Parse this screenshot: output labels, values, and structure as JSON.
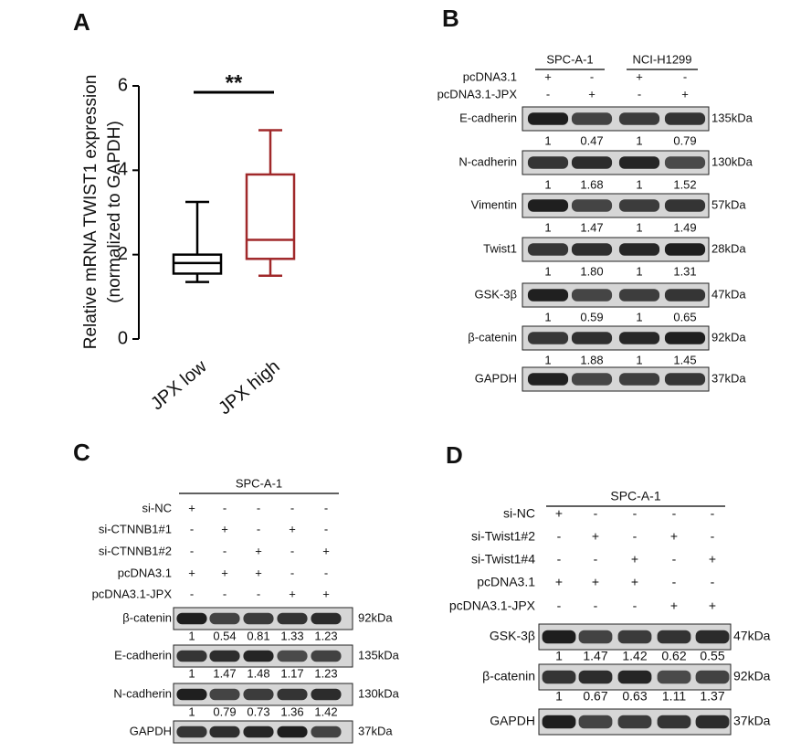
{
  "chart_data": {
    "type": "box",
    "panel": "A",
    "y_label_lines": [
      "Relative mRNA TWIST1 expression",
      "(normalized to GAPDH)"
    ],
    "annotation": "**",
    "categories": [
      "JPX low",
      "JPX high"
    ],
    "colors": [
      "#000000",
      "#a0282a"
    ],
    "values": [
      {
        "min": 1.35,
        "q1": 1.55,
        "median": 1.8,
        "q3": 2.0,
        "max": 3.25
      },
      {
        "min": 1.5,
        "q1": 1.9,
        "median": 2.35,
        "q3": 3.9,
        "max": 4.95
      }
    ],
    "ylim": [
      0,
      6
    ],
    "yticks": [
      0,
      2,
      4,
      6
    ]
  },
  "blots": [
    {
      "panel": "B",
      "groups": [
        "SPC-A-1",
        "NCI-H1299"
      ],
      "conditions": [
        {
          "name": "pcDNA3.1",
          "signs": [
            "+",
            "-",
            "+",
            "-"
          ]
        },
        {
          "name": "pcDNA3.1-JPX",
          "signs": [
            "-",
            "+",
            "-",
            "+"
          ]
        }
      ],
      "rows": [
        {
          "name": "E-cadherin",
          "size": "135kDa",
          "quant": [
            "1",
            "0.47",
            "1",
            "0.79"
          ]
        },
        {
          "name": "N-cadherin",
          "size": "130kDa",
          "quant": [
            "1",
            "1.68",
            "1",
            "1.52"
          ]
        },
        {
          "name": "Vimentin",
          "size": "57kDa",
          "quant": [
            "1",
            "1.47",
            "1",
            "1.49"
          ]
        },
        {
          "name": "Twist1",
          "size": "28kDa",
          "quant": [
            "1",
            "1.80",
            "1",
            "1.31"
          ]
        },
        {
          "name": "GSK-3β",
          "size": "47kDa",
          "quant": [
            "1",
            "0.59",
            "1",
            "0.65"
          ]
        },
        {
          "name": "β-catenin",
          "size": "92kDa",
          "quant": [
            "1",
            "1.88",
            "1",
            "1.45"
          ]
        },
        {
          "name": "GAPDH",
          "size": "37kDa"
        }
      ]
    },
    {
      "panel": "C",
      "groups": [
        "SPC-A-1"
      ],
      "conditions": [
        {
          "name": "si-NC",
          "signs": [
            "+",
            "-",
            "-",
            "-",
            "-"
          ]
        },
        {
          "name": "si-CTNNB1#1",
          "signs": [
            "-",
            "+",
            "-",
            "+",
            "-"
          ]
        },
        {
          "name": "si-CTNNB1#2",
          "signs": [
            "-",
            "-",
            "+",
            "-",
            "+"
          ]
        },
        {
          "name": "pcDNA3.1",
          "signs": [
            "+",
            "+",
            "+",
            "-",
            "-"
          ]
        },
        {
          "name": "pcDNA3.1-JPX",
          "signs": [
            "-",
            "-",
            "-",
            "+",
            "+"
          ]
        }
      ],
      "rows": [
        {
          "name": "β-catenin",
          "size": "92kDa",
          "quant": [
            "1",
            "0.54",
            "0.81",
            "1.33",
            "1.23"
          ]
        },
        {
          "name": "E-cadherin",
          "size": "135kDa",
          "quant": [
            "1",
            "1.47",
            "1.48",
            "1.17",
            "1.23"
          ]
        },
        {
          "name": "N-cadherin",
          "size": "130kDa",
          "quant": [
            "1",
            "0.79",
            "0.73",
            "1.36",
            "1.42"
          ]
        },
        {
          "name": "GAPDH",
          "size": "37kDa"
        }
      ]
    },
    {
      "panel": "D",
      "groups": [
        "SPC-A-1"
      ],
      "conditions": [
        {
          "name": "si-NC",
          "signs": [
            "+",
            "-",
            "-",
            "-",
            "-"
          ]
        },
        {
          "name": "si-Twist1#2",
          "signs": [
            "-",
            "+",
            "-",
            "+",
            "-"
          ]
        },
        {
          "name": "si-Twist1#4",
          "signs": [
            "-",
            "-",
            "+",
            "-",
            "+"
          ]
        },
        {
          "name": "pcDNA3.1",
          "signs": [
            "+",
            "+",
            "+",
            "-",
            "-"
          ]
        },
        {
          "name": "pcDNA3.1-JPX",
          "signs": [
            "-",
            "-",
            "-",
            "+",
            "+"
          ]
        }
      ],
      "rows": [
        {
          "name": "GSK-3β",
          "size": "47kDa",
          "quant": [
            "1",
            "1.47",
            "1.42",
            "0.62",
            "0.55"
          ]
        },
        {
          "name": "β-catenin",
          "size": "92kDa",
          "quant": [
            "1",
            "0.67",
            "0.63",
            "1.11",
            "1.37"
          ]
        },
        {
          "name": "GAPDH",
          "size": "37kDa"
        }
      ]
    }
  ]
}
